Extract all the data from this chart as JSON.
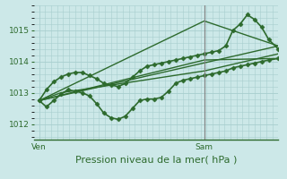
{
  "bg_color": "#cce8e8",
  "grid_color": "#a8cece",
  "line_color": "#2d6a2d",
  "marker_color": "#2d6a2d",
  "xlabel": "Pression niveau de la mer( hPa )",
  "xlabel_fontsize": 8,
  "yticks": [
    1012,
    1013,
    1014,
    1015
  ],
  "xtick_labels": [
    "Ven",
    "Sam"
  ],
  "xtick_positions": [
    0.0,
    0.69
  ],
  "ylim": [
    1011.5,
    1015.8
  ],
  "xlim": [
    -0.02,
    1.0
  ],
  "series": [
    {
      "x": [
        0.0,
        0.03,
        0.06,
        0.09,
        0.12,
        0.15,
        0.18,
        0.21,
        0.24,
        0.27,
        0.3,
        0.33,
        0.36,
        0.39,
        0.42,
        0.45,
        0.48,
        0.51,
        0.54,
        0.57,
        0.6,
        0.63,
        0.66,
        0.69,
        0.72,
        0.75,
        0.78,
        0.81,
        0.84,
        0.87,
        0.9,
        0.93,
        0.96,
        1.0
      ],
      "y": [
        1012.75,
        1012.55,
        1012.75,
        1012.95,
        1013.1,
        1013.05,
        1013.0,
        1012.9,
        1012.65,
        1012.35,
        1012.2,
        1012.15,
        1012.25,
        1012.5,
        1012.75,
        1012.8,
        1012.8,
        1012.85,
        1013.05,
        1013.3,
        1013.4,
        1013.45,
        1013.5,
        1013.55,
        1013.6,
        1013.65,
        1013.7,
        1013.8,
        1013.85,
        1013.9,
        1013.95,
        1014.0,
        1014.05,
        1014.1
      ],
      "linewidth": 1.2,
      "marker": "D",
      "markersize": 2.5
    },
    {
      "x": [
        0.0,
        0.03,
        0.06,
        0.09,
        0.12,
        0.15,
        0.18,
        0.21,
        0.24,
        0.27,
        0.3,
        0.33,
        0.36,
        0.39,
        0.42,
        0.45,
        0.48,
        0.51,
        0.54,
        0.57,
        0.6,
        0.63,
        0.66,
        0.69,
        0.72,
        0.75,
        0.78,
        0.81,
        0.84,
        0.87,
        0.9,
        0.93,
        0.96,
        1.0
      ],
      "y": [
        1012.75,
        1013.1,
        1013.35,
        1013.5,
        1013.6,
        1013.65,
        1013.65,
        1013.55,
        1013.45,
        1013.3,
        1013.25,
        1013.2,
        1013.3,
        1013.5,
        1013.7,
        1013.85,
        1013.9,
        1013.95,
        1014.0,
        1014.05,
        1014.1,
        1014.15,
        1014.2,
        1014.25,
        1014.3,
        1014.35,
        1014.5,
        1015.0,
        1015.2,
        1015.5,
        1015.35,
        1015.1,
        1014.7,
        1014.4
      ],
      "linewidth": 1.2,
      "marker": "D",
      "markersize": 2.5
    },
    {
      "x": [
        0.0,
        1.0
      ],
      "y": [
        1012.75,
        1014.5
      ],
      "linewidth": 1.0,
      "marker": null,
      "markersize": 0
    },
    {
      "x": [
        0.0,
        0.69,
        1.0
      ],
      "y": [
        1012.75,
        1015.3,
        1014.5
      ],
      "linewidth": 1.0,
      "marker": null,
      "markersize": 0
    },
    {
      "x": [
        0.0,
        0.69,
        1.0
      ],
      "y": [
        1012.75,
        1014.05,
        1014.1
      ],
      "linewidth": 1.0,
      "marker": null,
      "markersize": 0
    },
    {
      "x": [
        0.0,
        0.09,
        0.69,
        1.0
      ],
      "y": [
        1012.75,
        1013.0,
        1013.7,
        1014.25
      ],
      "linewidth": 1.0,
      "marker": null,
      "markersize": 0
    }
  ],
  "vline_x": 0.69,
  "vline_color": "#808080",
  "vline_linewidth": 0.8
}
